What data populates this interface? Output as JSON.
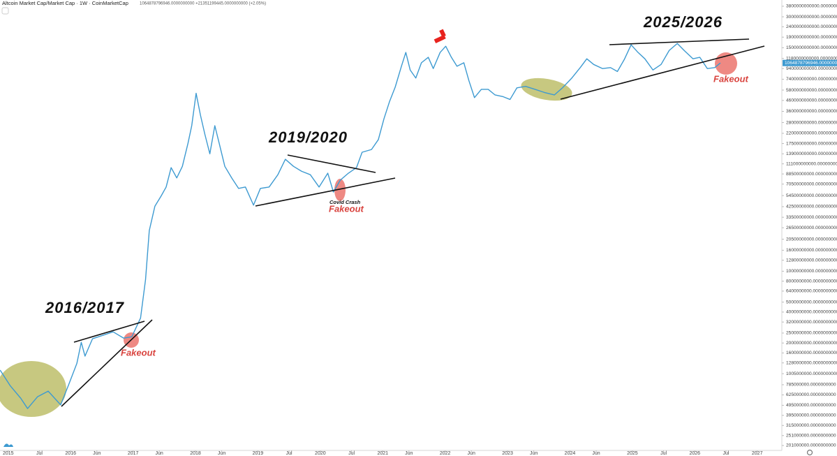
{
  "chart_data": {
    "type": "line",
    "title": "Altcoin Market Cap/Market Cap · 1W · CoinMarketCap",
    "subtitle": "1064878796946.0000000000 +21351199445.0000000000 (+2.05%)",
    "last_value_label": "1064878796946.0000000000",
    "annotations": [
      "2016/2017",
      "2019/2020",
      "2025/2026",
      "Fakeout",
      "Fakeout",
      "Fakeout",
      "Covid Crash"
    ],
    "color": "#3d9ad1",
    "log_scale": true,
    "grid": false,
    "xlim": [
      2014.868,
      2027.395
    ],
    "xticks": [
      2015,
      {
        "value": 2015.5,
        "label": "Jul"
      },
      2016,
      {
        "value": 2016.42,
        "label": "Jun"
      },
      2017,
      {
        "value": 2017.42,
        "label": "Jun"
      },
      2018,
      {
        "value": 2018.42,
        "label": "Jun"
      },
      2019,
      {
        "value": 2019.5,
        "label": "Jul"
      },
      2020,
      {
        "value": 2020.5,
        "label": "Jul"
      },
      2021,
      {
        "value": 2021.42,
        "label": "Jun"
      },
      2022,
      {
        "value": 2022.42,
        "label": "Jun"
      },
      2023,
      {
        "value": 2023.42,
        "label": "Jun"
      },
      2024,
      {
        "value": 2024.42,
        "label": "Jun"
      },
      2025,
      {
        "value": 2025.5,
        "label": "Jul"
      },
      2026,
      {
        "value": 2026.5,
        "label": "Jul"
      },
      2027
    ],
    "ylim": [
      180000000,
      4370000000000
    ],
    "yticks": [
      {
        "value": 3800000000000,
        "label": "3800000000000.0000000000"
      },
      {
        "value": 3000000000000,
        "label": "3000000000000.0000000000"
      },
      {
        "value": 2400000000000,
        "label": "2400000000000.0000000000"
      },
      {
        "value": 1900000000000,
        "label": "1900000000000.0000000000"
      },
      {
        "value": 1500000000000,
        "label": "1500000000000.0000000000"
      },
      {
        "value": 1180000000000,
        "label": "1180000000000.0000000000"
      },
      {
        "value": 940000000000,
        "label": "940000000000.0000000000"
      },
      {
        "value": 740000000000,
        "label": "740000000000.0000000000"
      },
      {
        "value": 580000000000,
        "label": "580000000000.0000000000"
      },
      {
        "value": 460000000000,
        "label": "460000000000.0000000000"
      },
      {
        "value": 360000000000,
        "label": "360000000000.0000000000"
      },
      {
        "value": 280000000000,
        "label": "280000000000.0000000000"
      },
      {
        "value": 220000000000,
        "label": "220000000000.0000000000"
      },
      {
        "value": 175000000000,
        "label": "175000000000.0000000000"
      },
      {
        "value": 139000000000,
        "label": "139000000000.0000000000"
      },
      {
        "value": 111000000000,
        "label": "111000000000.0000000000"
      },
      {
        "value": 88500000000,
        "label": "88500000000.0000000000"
      },
      {
        "value": 70500000000,
        "label": "70500000000.0000000000"
      },
      {
        "value": 54500000000,
        "label": "54500000000.0000000000"
      },
      {
        "value": 42500000000,
        "label": "42500000000.0000000000"
      },
      {
        "value": 33500000000,
        "label": "33500000000.0000000000"
      },
      {
        "value": 26500000000,
        "label": "26500000000.0000000000"
      },
      {
        "value": 20500000000,
        "label": "20500000000.0000000000"
      },
      {
        "value": 16000000000,
        "label": "16000000000.0000000000"
      },
      {
        "value": 12800000000,
        "label": "12800000000.0000000000"
      },
      {
        "value": 10000000000,
        "label": "10000000000.0000000000"
      },
      {
        "value": 8000000000,
        "label": "8000000000.0000000000"
      },
      {
        "value": 6400000000,
        "label": "6400000000.0000000000"
      },
      {
        "value": 5000000000,
        "label": "5000000000.0000000000"
      },
      {
        "value": 4000000000,
        "label": "4000000000.0000000000"
      },
      {
        "value": 3200000000,
        "label": "3200000000.0000000000"
      },
      {
        "value": 2500000000,
        "label": "2500000000.0000000000"
      },
      {
        "value": 2000000000,
        "label": "2000000000.0000000000"
      },
      {
        "value": 1600000000,
        "label": "1600000000.0000000000"
      },
      {
        "value": 1280000000,
        "label": "1280000000.0000000000"
      },
      {
        "value": 1005000000,
        "label": "1005000000.0000000000"
      },
      {
        "value": 785000000,
        "label": "785000000.0000000000"
      },
      {
        "value": 625000000,
        "label": "625000000.0000000000"
      },
      {
        "value": 495000000,
        "label": "495000000.0000000000"
      },
      {
        "value": 395000000,
        "label": "395000000.0000000000"
      },
      {
        "value": 315000000,
        "label": "315000000.0000000000"
      },
      {
        "value": 251000000,
        "label": "251000000.0000000000"
      },
      {
        "value": 201000000,
        "label": "201000000.0000000000"
      }
    ],
    "x": [
      2014.87,
      2015.03,
      2015.2,
      2015.31,
      2015.47,
      2015.64,
      2015.84,
      2015.97,
      2016.1,
      2016.17,
      2016.23,
      2016.35,
      2016.52,
      2016.68,
      2016.85,
      2016.98,
      2017.12,
      2017.2,
      2017.26,
      2017.35,
      2017.45,
      2017.53,
      2017.61,
      2017.7,
      2017.79,
      2017.88,
      2017.94,
      2018.01,
      2018.08,
      2018.15,
      2018.23,
      2018.31,
      2018.38,
      2018.47,
      2018.58,
      2018.69,
      2018.8,
      2018.93,
      2019.04,
      2019.18,
      2019.32,
      2019.44,
      2019.57,
      2019.7,
      2019.84,
      2019.98,
      2020.12,
      2020.21,
      2020.32,
      2020.45,
      2020.58,
      2020.67,
      2020.82,
      2020.93,
      2021.02,
      2021.11,
      2021.2,
      2021.3,
      2021.37,
      2021.44,
      2021.53,
      2021.62,
      2021.73,
      2021.81,
      2021.92,
      2022.01,
      2022.1,
      2022.19,
      2022.3,
      2022.38,
      2022.47,
      2022.58,
      2022.69,
      2022.8,
      2022.93,
      2023.04,
      2023.15,
      2023.29,
      2023.44,
      2023.59,
      2023.75,
      2023.88,
      2024.03,
      2024.17,
      2024.27,
      2024.38,
      2024.52,
      2024.65,
      2024.76,
      2024.87,
      2024.98,
      2025.09,
      2025.2,
      2025.33,
      2025.46,
      2025.59,
      2025.72,
      2025.83,
      2025.97,
      2026.08,
      2026.2,
      2026.32,
      2026.41
    ],
    "values": [
      1090000000,
      770000000,
      580000000,
      460000000,
      600000000,
      680000000,
      500000000,
      790000000,
      1270000000,
      2030000000,
      1490000000,
      2200000000,
      2380000000,
      2570000000,
      2230000000,
      2300000000,
      3500000000,
      8300000000,
      24900000000,
      43000000000,
      54000000000,
      66000000000,
      102000000000,
      81000000000,
      105000000000,
      176000000000,
      261000000000,
      540000000000,
      330000000000,
      216000000000,
      139000000000,
      261000000000,
      176000000000,
      105000000000,
      81000000000,
      64000000000,
      66000000000,
      44000000000,
      64000000000,
      66000000000,
      87000000000,
      123000000000,
      105000000000,
      94000000000,
      87000000000,
      66000000000,
      90000000000,
      59000000000,
      77000000000,
      90000000000,
      102000000000,
      144000000000,
      153000000000,
      191000000000,
      305000000000,
      450000000000,
      620000000000,
      990000000000,
      1350000000000,
      910000000000,
      760000000000,
      1070000000000,
      1210000000000,
      940000000000,
      1350000000000,
      1550000000000,
      1210000000000,
      990000000000,
      1070000000000,
      720000000000,
      490000000000,
      590000000000,
      590000000000,
      520000000000,
      500000000000,
      470000000000,
      610000000000,
      630000000000,
      590000000000,
      550000000000,
      520000000000,
      610000000000,
      760000000000,
      970000000000,
      1170000000000,
      1030000000000,
      940000000000,
      960000000000,
      880000000000,
      1150000000000,
      1600000000000,
      1350000000000,
      1170000000000,
      910000000000,
      1030000000000,
      1410000000000,
      1650000000000,
      1410000000000,
      1170000000000,
      1210000000000,
      940000000000,
      960000000000,
      1064878796946
    ]
  }
}
